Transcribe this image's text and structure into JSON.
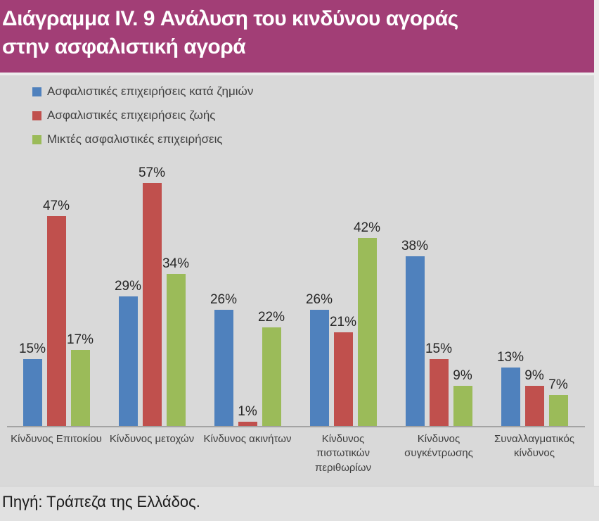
{
  "header": {
    "title": "Διάγραμμα IV. 9 Ανάλυση του κινδύνου αγοράς\nστην ασφαλιστική αγορά",
    "bg_color": "#A23E76",
    "text_color": "#FFFFFF"
  },
  "chart_data": {
    "type": "bar",
    "unit": "%",
    "data_labels": true,
    "grid": false,
    "y_axis_visible": false,
    "ylim": [
      0,
      60
    ],
    "legend_position": "top-left",
    "plot_background_color": "#D9D9D9",
    "categories": [
      "Κίνδυνος Επιτοκίου",
      "Κίνδυνος μετοχών",
      "Κίνδυνος ακινήτων",
      "Κίνδυνος\nπιστωτικών\nπεριθωρίων",
      "Κίνδυνος\nσυγκέντρωσης",
      "Συναλλαγματικός\nκίνδυνος"
    ],
    "series": [
      {
        "name": "Ασφαλιστικές επιχειρήσεις κατά ζημιών",
        "color": "#4F81BD",
        "values": [
          15,
          29,
          26,
          26,
          38,
          13
        ]
      },
      {
        "name": "Ασφαλιστικές επιχειρήσεις ζωής",
        "color": "#C0504D",
        "values": [
          47,
          57,
          1,
          21,
          15,
          9
        ]
      },
      {
        "name": "Μικτές ασφαλιστικές επιχειρήσεις",
        "color": "#9BBB59",
        "values": [
          17,
          34,
          22,
          42,
          9,
          7
        ]
      }
    ]
  },
  "footer": {
    "source": "Πηγή: Τράπεζα της Ελλάδος."
  }
}
